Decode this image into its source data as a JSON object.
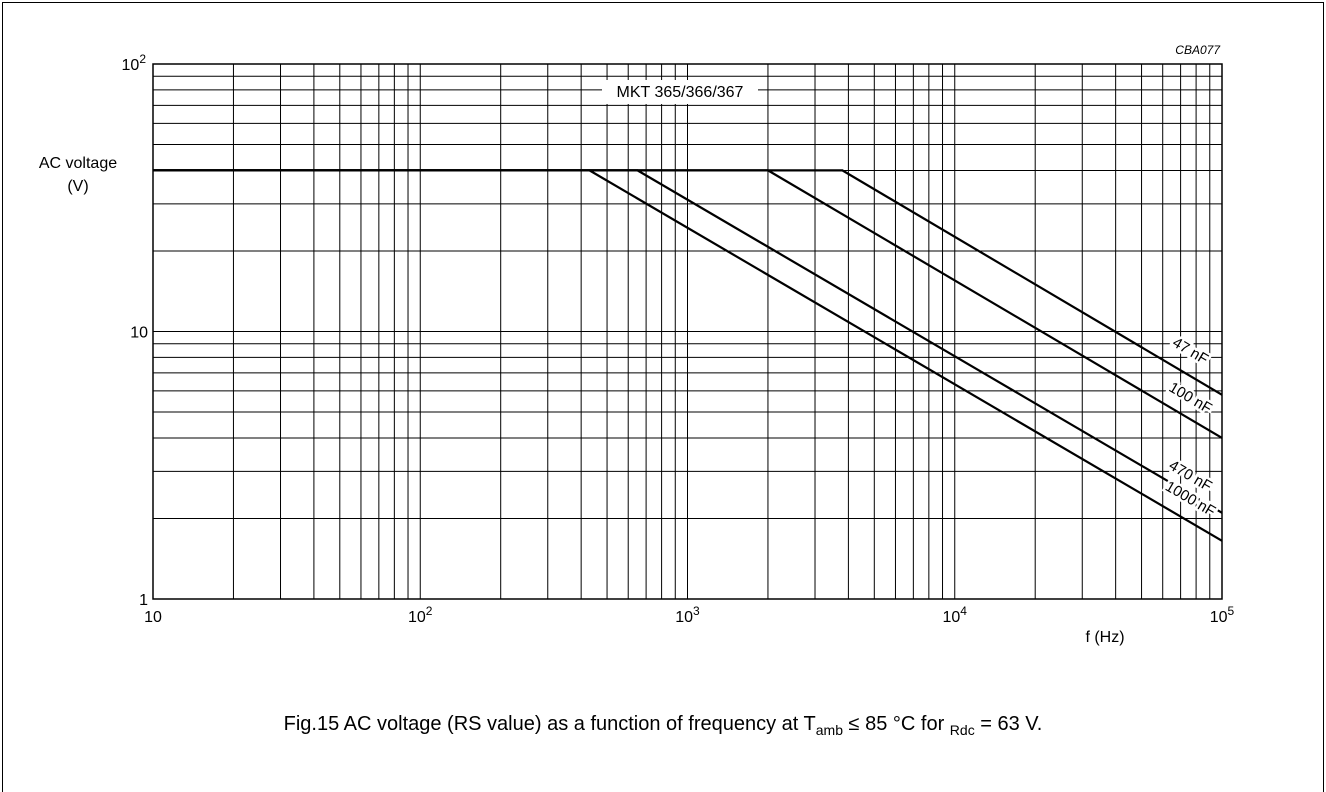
{
  "chart_data": {
    "type": "line",
    "title": "MKT 365/366/367",
    "code": "CBA077",
    "xlabel": "f  (Hz)",
    "ylabel_line1": "AC voltage",
    "ylabel_line2": "(V)",
    "xscale": "log",
    "yscale": "log",
    "xlim": [
      10,
      100000
    ],
    "ylim": [
      1,
      100
    ],
    "grid": true,
    "x_ticks": [
      {
        "value": 10,
        "base": "10",
        "exp": ""
      },
      {
        "value": 100,
        "base": "10",
        "exp": "2"
      },
      {
        "value": 1000,
        "base": "10",
        "exp": "3"
      },
      {
        "value": 10000,
        "base": "10",
        "exp": "4"
      },
      {
        "value": 100000,
        "base": "10",
        "exp": "5"
      }
    ],
    "y_ticks": [
      {
        "value": 1,
        "base": "1",
        "exp": ""
      },
      {
        "value": 10,
        "base": "10",
        "exp": ""
      },
      {
        "value": 100,
        "base": "10",
        "exp": "2"
      }
    ],
    "series": [
      {
        "name": "47 nF",
        "points": [
          [
            10,
            40
          ],
          [
            3800,
            40
          ],
          [
            100000,
            5.8
          ]
        ]
      },
      {
        "name": "100 nF",
        "points": [
          [
            10,
            40
          ],
          [
            2000,
            40
          ],
          [
            100000,
            4.0
          ]
        ]
      },
      {
        "name": "470 nF",
        "points": [
          [
            10,
            40
          ],
          [
            650,
            40
          ],
          [
            100000,
            2.1
          ]
        ]
      },
      {
        "name": "1000 nF",
        "points": [
          [
            10,
            40
          ],
          [
            430,
            40
          ],
          [
            100000,
            1.65
          ]
        ]
      }
    ]
  },
  "caption": {
    "prefix": "Fig.15  AC voltage (RS value) as a function of frequency at T",
    "sub1": "amb",
    "mid": " ≤ 85 °C for ",
    "sub2": "Rdc",
    "suffix": " = 63 V."
  }
}
